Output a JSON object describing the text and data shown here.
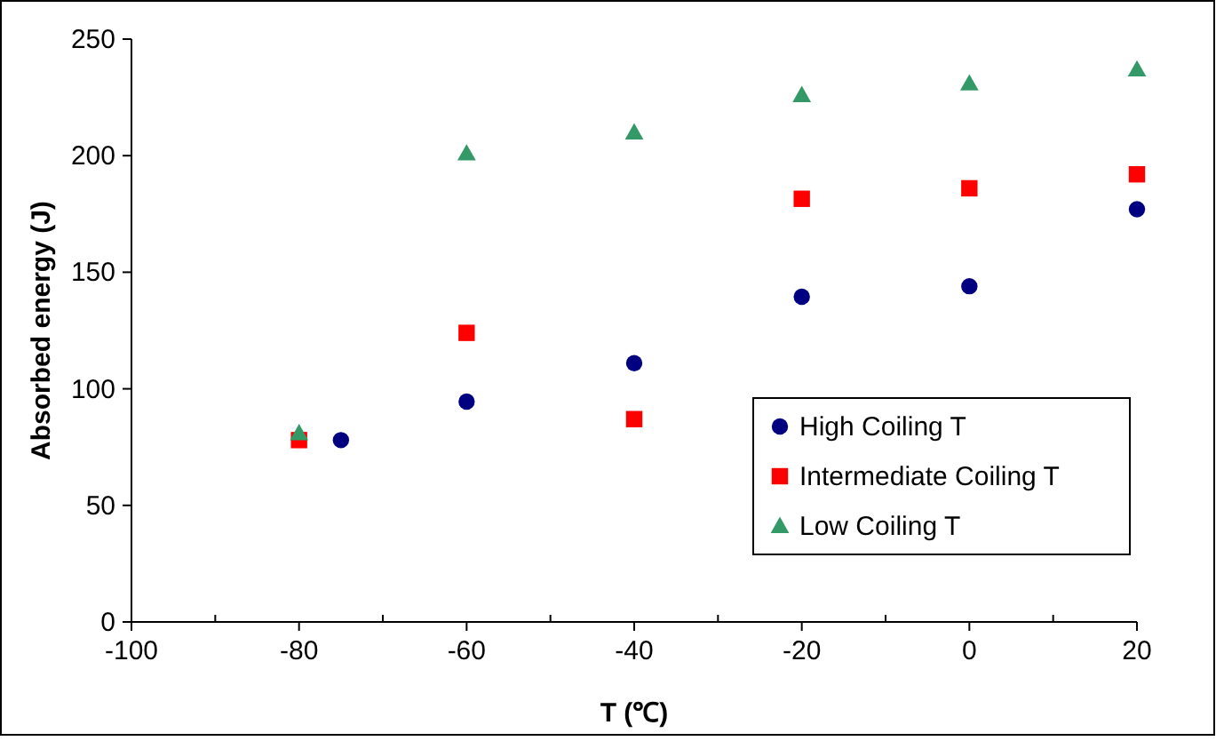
{
  "chart_data": {
    "type": "scatter",
    "xlabel": "T (℃)",
    "ylabel": "Absorbed energy (J)",
    "xlim": [
      -100,
      20
    ],
    "xticks": [
      -100,
      {
        "value": -90,
        "label": null
      },
      -80,
      {
        "value": -70,
        "label": null
      },
      -60,
      {
        "value": -50,
        "label": null
      },
      -40,
      {
        "value": -30,
        "label": null
      },
      -20,
      {
        "value": -10,
        "label": null
      },
      0,
      {
        "value": 10,
        "label": null
      },
      20
    ],
    "ylim": [
      0,
      250
    ],
    "yticks": [
      0,
      50,
      100,
      150,
      200,
      250
    ],
    "grid": false,
    "legend": "bottom right",
    "series": [
      {
        "name": "High Coiling T",
        "color": "#000080",
        "marker": "circle",
        "x": [
          -75,
          -60,
          -40,
          -20,
          0,
          20
        ],
        "values": [
          78,
          94.5,
          111,
          139.5,
          144,
          177
        ]
      },
      {
        "name": "Intermediate Coiling T",
        "color": "#ff0000",
        "marker": "square",
        "x": [
          -80,
          -60,
          -40,
          -20,
          0,
          20
        ],
        "values": [
          78,
          124,
          87,
          181.5,
          186,
          192
        ]
      },
      {
        "name": "Low Coiling T",
        "color": "#339966",
        "marker": "triangle",
        "x": [
          -80,
          -60,
          -40,
          -20,
          0,
          20
        ],
        "values": [
          81,
          201,
          210,
          226,
          231,
          237
        ]
      }
    ]
  }
}
